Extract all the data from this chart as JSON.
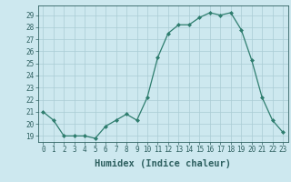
{
  "x": [
    0,
    1,
    2,
    3,
    4,
    5,
    6,
    7,
    8,
    9,
    10,
    11,
    12,
    13,
    14,
    15,
    16,
    17,
    18,
    19,
    20,
    21,
    22,
    23
  ],
  "y": [
    21.0,
    20.3,
    19.0,
    19.0,
    19.0,
    18.8,
    19.8,
    20.3,
    20.8,
    20.3,
    22.2,
    25.5,
    27.5,
    28.2,
    28.2,
    28.8,
    29.2,
    29.0,
    29.2,
    27.8,
    25.3,
    22.2,
    20.3,
    19.3
  ],
  "line_color": "#2e7d6e",
  "marker": "D",
  "marker_size": 2.0,
  "bg_color": "#cde8ef",
  "grid_color": "#aaccd4",
  "xlabel": "Humidex (Indice chaleur)",
  "ylim": [
    18.5,
    29.8
  ],
  "xlim": [
    -0.5,
    23.5
  ],
  "yticks": [
    19,
    20,
    21,
    22,
    23,
    24,
    25,
    26,
    27,
    28,
    29
  ],
  "xticks": [
    0,
    1,
    2,
    3,
    4,
    5,
    6,
    7,
    8,
    9,
    10,
    11,
    12,
    13,
    14,
    15,
    16,
    17,
    18,
    19,
    20,
    21,
    22,
    23
  ],
  "tick_color": "#2e6060",
  "tick_fontsize": 5.5,
  "xlabel_fontsize": 7.5,
  "linewidth": 0.9
}
